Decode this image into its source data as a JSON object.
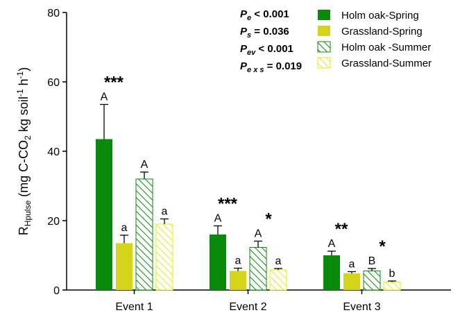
{
  "chart_data": {
    "type": "bar",
    "categories": [
      "Event 1",
      "Event 2",
      "Event 3"
    ],
    "ylim": [
      0,
      80
    ],
    "yticks": [
      0,
      20,
      40,
      60,
      80
    ],
    "ylabel_main": "R",
    "ylabel_sub": "Hpulse",
    "ylabel_rest_1": " (mg C-CO",
    "ylabel_sub2": "2",
    "ylabel_rest_2": " kg soil",
    "ylabel_sup": "-1",
    "ylabel_rest_3": " h",
    "ylabel_sup2": "-1",
    "ylabel_rest_4": ")",
    "series": [
      {
        "name": "Holm oak-Spring",
        "values": [
          43.5,
          16.0,
          10.0
        ],
        "errors": [
          10.0,
          2.5,
          1.2
        ],
        "letters": [
          "A",
          "A",
          "A"
        ],
        "color": "#0a8a0a",
        "pattern": "solid"
      },
      {
        "name": "Grassland-Spring",
        "values": [
          13.5,
          5.5,
          4.8
        ],
        "errors": [
          2.3,
          0.8,
          0.5
        ],
        "letters": [
          "a",
          "a",
          "a"
        ],
        "color": "#d4d41a",
        "pattern": "solid"
      },
      {
        "name": "Holm oak -Summer",
        "values": [
          32.0,
          12.3,
          5.5
        ],
        "errors": [
          2.0,
          1.8,
          0.7
        ],
        "letters": [
          "A",
          "A",
          "B"
        ],
        "color": "#0a8a0a",
        "pattern": "hatched"
      },
      {
        "name": "Grassland-Summer",
        "values": [
          19.0,
          5.8,
          2.3
        ],
        "errors": [
          1.5,
          0.4,
          0.3
        ],
        "letters": [
          "a",
          "a",
          "b"
        ],
        "color": "#e8e81a",
        "pattern": "hatched"
      }
    ],
    "significance": [
      {
        "category": 0,
        "group": "oak",
        "label": "***"
      },
      {
        "category": 1,
        "group": "oak",
        "label": "***"
      },
      {
        "category": 1,
        "group": "grass",
        "label": "*"
      },
      {
        "category": 2,
        "group": "oak",
        "label": "**"
      },
      {
        "category": 2,
        "group": "grass",
        "label": "*"
      }
    ],
    "stats": [
      {
        "p": "P",
        "sub": "e",
        "text": " < 0.001"
      },
      {
        "p": "P",
        "sub": "s",
        "text": " = 0.036"
      },
      {
        "p": "P",
        "sub": "ev",
        "text": " < 0.001"
      },
      {
        "p": "P",
        "sub": "e x s",
        "text": " = 0.019"
      }
    ],
    "legend_position": "top-right",
    "grid": false
  }
}
